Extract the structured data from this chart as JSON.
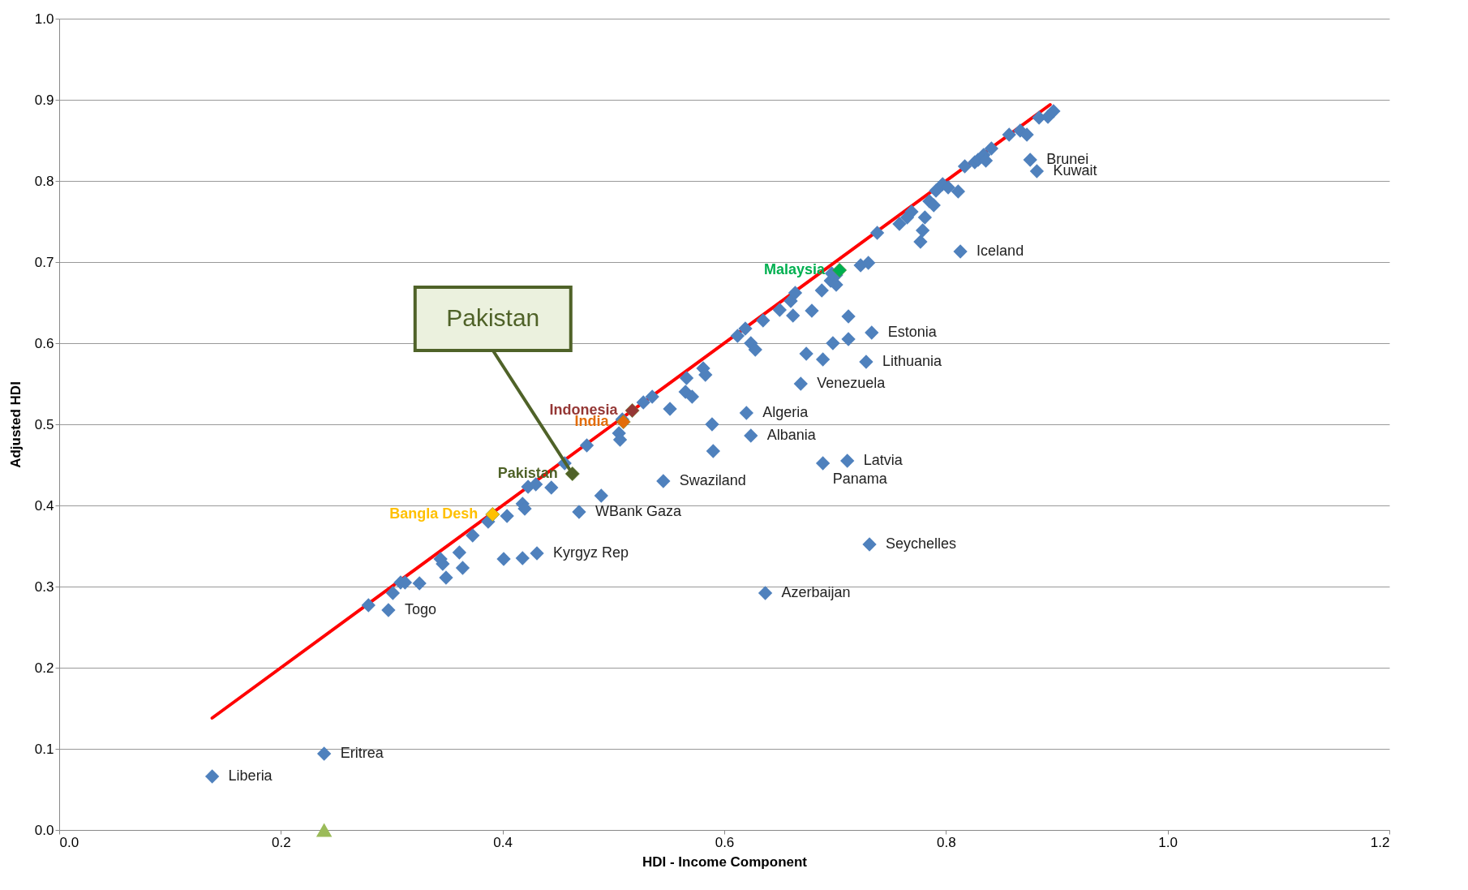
{
  "chart_data": {
    "type": "scatter",
    "xlabel": "HDI - Income Component",
    "ylabel": "Adjusted HDI",
    "xlim": [
      0,
      1.2
    ],
    "ylim": [
      0,
      1
    ],
    "xticks": [
      {
        "value": 0,
        "label": "0.0"
      },
      0.2,
      0.4,
      0.6,
      0.8,
      {
        "value": 1,
        "label": "1.0"
      },
      1.2
    ],
    "yticks": [
      {
        "value": 0,
        "label": "0.0"
      },
      0.1,
      0.2,
      0.3,
      0.4,
      0.5,
      0.6,
      0.7,
      0.8,
      0.9,
      {
        "value": 1,
        "label": "1.0"
      }
    ],
    "grid": "y",
    "legend": false,
    "marker": "diamond",
    "series": [
      {
        "type": "line",
        "color": "#ff0000",
        "x": [
          0.138,
          0.894
        ],
        "values": [
          0.138,
          0.894
        ],
        "marker": "none"
      },
      {
        "color": "#4f81bd",
        "x": [
          0.138,
          0.239,
          0.279,
          0.297,
          0.301,
          0.308,
          0.312,
          0.325,
          0.344,
          0.346,
          0.349,
          0.361,
          0.364,
          0.373,
          0.387,
          0.404,
          0.401,
          0.418,
          0.42,
          0.418,
          0.431,
          0.423,
          0.43,
          0.444,
          0.456,
          0.469,
          0.476,
          0.489,
          0.505,
          0.506,
          0.508,
          0.527,
          0.535,
          0.545,
          0.551,
          0.566,
          0.565,
          0.571,
          0.581,
          0.583,
          0.589,
          0.59,
          0.612,
          0.619,
          0.62,
          0.624,
          0.624,
          0.628,
          0.635,
          0.637,
          0.65,
          0.66,
          0.664,
          0.662,
          0.669,
          0.674,
          0.679,
          0.688,
          0.689,
          0.689,
          0.696,
          0.698,
          0.701,
          0.701,
          0.697,
          0.711,
          0.712,
          0.712,
          0.723,
          0.73,
          0.728,
          0.733,
          0.731,
          0.738,
          0.758,
          0.765,
          0.769,
          0.777,
          0.779,
          0.781,
          0.785,
          0.789,
          0.791,
          0.797,
          0.802,
          0.811,
          0.813,
          0.817,
          0.826,
          0.829,
          0.834,
          0.836,
          0.841,
          0.857,
          0.867,
          0.873,
          0.876,
          0.882,
          0.884,
          0.892,
          0.897
        ],
        "values": [
          0.066,
          0.094,
          0.277,
          0.271,
          0.292,
          0.305,
          0.305,
          0.304,
          0.334,
          0.328,
          0.311,
          0.342,
          0.323,
          0.363,
          0.38,
          0.387,
          0.334,
          0.402,
          0.396,
          0.335,
          0.341,
          0.423,
          0.426,
          0.422,
          0.452,
          0.392,
          0.474,
          0.412,
          0.489,
          0.481,
          0.506,
          0.527,
          0.534,
          0.43,
          0.519,
          0.557,
          0.54,
          0.534,
          0.569,
          0.561,
          0.5,
          0.467,
          0.609,
          0.618,
          0.514,
          0.486,
          0.6,
          0.592,
          0.628,
          0.292,
          0.641,
          0.652,
          0.662,
          0.634,
          0.55,
          0.587,
          0.64,
          0.665,
          0.452,
          0.58,
          0.677,
          0.6,
          0.672,
          0.684,
          0.686,
          0.455,
          0.633,
          0.605,
          0.696,
          0.699,
          0.577,
          0.613,
          0.352,
          0.736,
          0.747,
          0.755,
          0.762,
          0.725,
          0.739,
          0.755,
          0.775,
          0.77,
          0.788,
          0.796,
          0.792,
          0.787,
          0.713,
          0.818,
          0.823,
          0.826,
          0.832,
          0.825,
          0.84,
          0.857,
          0.862,
          0.857,
          0.826,
          0.812,
          0.878,
          0.879,
          0.886
        ]
      },
      {
        "name": "Indonesia",
        "color": "#953735",
        "x": [
          0.517
        ],
        "values": [
          0.517
        ]
      },
      {
        "name": "India",
        "color": "#e36c09",
        "x": [
          0.509
        ],
        "values": [
          0.503
        ]
      },
      {
        "name": "Pakistan",
        "color": "#4f6228",
        "x": [
          0.463
        ],
        "values": [
          0.439
        ]
      },
      {
        "name": "Bangla Desh",
        "color": "#ffc000",
        "x": [
          0.391
        ],
        "values": [
          0.389
        ]
      },
      {
        "name": "Malaysia",
        "color": "#00b050",
        "x": [
          0.704
        ],
        "values": [
          0.69
        ]
      },
      {
        "color": "#9bbb59",
        "x": [
          0.239
        ],
        "values": [
          0
        ],
        "marker": "triangle"
      }
    ],
    "annotations": [
      {
        "text": "Pakistan",
        "x": 0.463,
        "y": 0.439
      },
      {
        "text": "Liberia",
        "x": 0.138,
        "y": 0.066
      },
      {
        "text": "Eritrea",
        "x": 0.239,
        "y": 0.094
      },
      {
        "text": "Togo",
        "x": 0.297,
        "y": 0.271
      },
      {
        "text": "Kyrgyz Rep",
        "x": 0.431,
        "y": 0.341
      },
      {
        "text": "WBank Gaza",
        "x": 0.469,
        "y": 0.392
      },
      {
        "text": "Swaziland",
        "x": 0.545,
        "y": 0.43
      },
      {
        "text": "Algeria",
        "x": 0.62,
        "y": 0.514
      },
      {
        "text": "Albania",
        "x": 0.624,
        "y": 0.486
      },
      {
        "text": "Azerbaijan",
        "x": 0.637,
        "y": 0.292
      },
      {
        "text": "Venezuela",
        "x": 0.669,
        "y": 0.55
      },
      {
        "text": "Panama",
        "x": 0.689,
        "y": 0.452
      },
      {
        "text": "Latvia",
        "x": 0.711,
        "y": 0.455
      },
      {
        "text": "Lithuania",
        "x": 0.728,
        "y": 0.577
      },
      {
        "text": "Estonia",
        "x": 0.733,
        "y": 0.613
      },
      {
        "text": "Seychelles",
        "x": 0.731,
        "y": 0.352
      },
      {
        "text": "Iceland",
        "x": 0.813,
        "y": 0.713
      },
      {
        "text": "Brunei",
        "x": 0.876,
        "y": 0.826
      },
      {
        "text": "Kuwait",
        "x": 0.882,
        "y": 0.812
      }
    ]
  }
}
